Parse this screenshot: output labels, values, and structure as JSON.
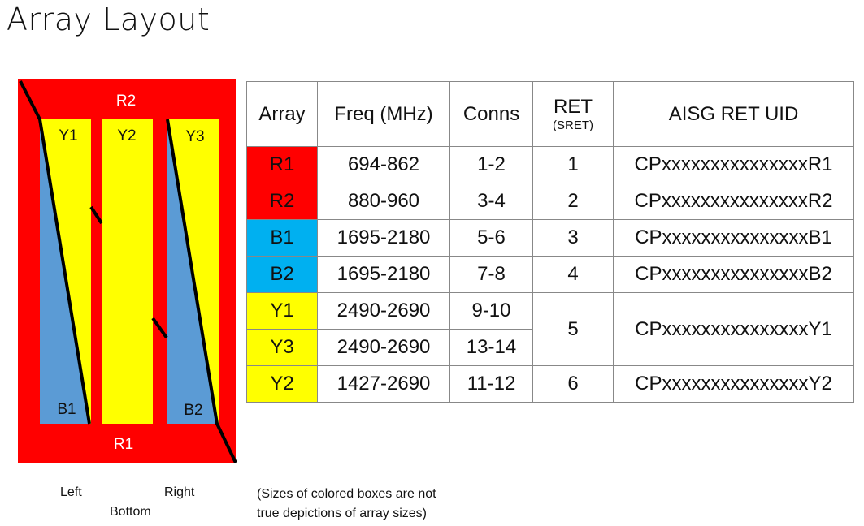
{
  "title": "Array Layout",
  "diagram": {
    "labels": {
      "r2": "R2",
      "r1": "R1",
      "y1": "Y1",
      "y2": "Y2",
      "y3": "Y3",
      "b1": "B1",
      "b2": "B2"
    },
    "colors": {
      "red": "#ff0000",
      "yellow": "#ffff00",
      "blue": "#5b9bd5",
      "line": "#000000"
    },
    "orientation": {
      "left": "Left",
      "right": "Right",
      "bottom": "Bottom"
    }
  },
  "table": {
    "headers": {
      "array": "Array",
      "freq": "Freq (MHz)",
      "conns": "Conns",
      "ret": "RET",
      "ret_sub": "(SRET)",
      "uid": "AISG RET UID"
    },
    "rows": [
      {
        "array": "R1",
        "color": "#ff0000",
        "freq": "694-862",
        "conns": "1-2",
        "ret": "1",
        "uid": "CPxxxxxxxxxxxxxxxR1"
      },
      {
        "array": "R2",
        "color": "#ff0000",
        "freq": "880-960",
        "conns": "3-4",
        "ret": "2",
        "uid": "CPxxxxxxxxxxxxxxxR2"
      },
      {
        "array": "B1",
        "color": "#00b0f0",
        "freq": "1695-2180",
        "conns": "5-6",
        "ret": "3",
        "uid": "CPxxxxxxxxxxxxxxxB1"
      },
      {
        "array": "B2",
        "color": "#00b0f0",
        "freq": "1695-2180",
        "conns": "7-8",
        "ret": "4",
        "uid": "CPxxxxxxxxxxxxxxxB2"
      },
      {
        "array": "Y1",
        "color": "#ffff00",
        "freq": "2490-2690",
        "conns": "9-10",
        "ret": "5",
        "uid": "CPxxxxxxxxxxxxxxxY1"
      },
      {
        "array": "Y3",
        "color": "#ffff00",
        "freq": "2490-2690",
        "conns": "13-14"
      },
      {
        "array": "Y2",
        "color": "#ffff00",
        "freq": "1427-2690",
        "conns": "11-12",
        "ret": "6",
        "uid": "CPxxxxxxxxxxxxxxxY2"
      }
    ]
  },
  "note": {
    "line1": "(Sizes of colored boxes are not",
    "line2": "true depictions of array sizes)"
  }
}
